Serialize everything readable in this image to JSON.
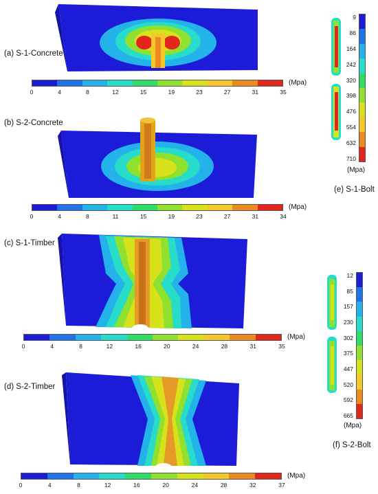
{
  "panels": {
    "a": {
      "label": "(a)  S-1-Concrete"
    },
    "b": {
      "label": "(b)  S-2-Concrete"
    },
    "c": {
      "label": "(c)  S-1-Timber"
    },
    "d": {
      "label": "(d)  S-2-Timber"
    },
    "e": {
      "label": "(e)  S-1-Bolt"
    },
    "f": {
      "label": "(f)  S-2-Bolt"
    }
  },
  "colorbar_colors": [
    "#1c1cd8",
    "#1f73e6",
    "#23b3ea",
    "#27dcc8",
    "#2edc66",
    "#90e12f",
    "#d8e21a",
    "#f4c82a",
    "#ec8a22",
    "#e3261c"
  ],
  "colorbars": {
    "a": {
      "unit": "(Mpa)",
      "ticks": [
        "0",
        "4",
        "8",
        "12",
        "15",
        "19",
        "23",
        "27",
        "31",
        "35"
      ]
    },
    "b": {
      "unit": "(Mpa)",
      "ticks": [
        "0",
        "4",
        "8",
        "11",
        "15",
        "19",
        "23",
        "27",
        "31",
        "34"
      ]
    },
    "c": {
      "unit": "(Mpa)",
      "ticks": [
        "0",
        "4",
        "8",
        "12",
        "16",
        "20",
        "24",
        "28",
        "31",
        "35"
      ]
    },
    "d": {
      "unit": "(Mpa)",
      "ticks": [
        "0",
        "4",
        "8",
        "12",
        "16",
        "20",
        "24",
        "28",
        "32",
        "37"
      ]
    },
    "e": {
      "unit": "(Mpa)",
      "ticks": [
        "9",
        "86",
        "164",
        "242",
        "320",
        "398",
        "476",
        "554",
        "632",
        "710"
      ]
    },
    "f": {
      "unit": "(Mpa)",
      "ticks": [
        "12",
        "85",
        "157",
        "230",
        "302",
        "375",
        "447",
        "520",
        "592",
        "665"
      ]
    }
  }
}
